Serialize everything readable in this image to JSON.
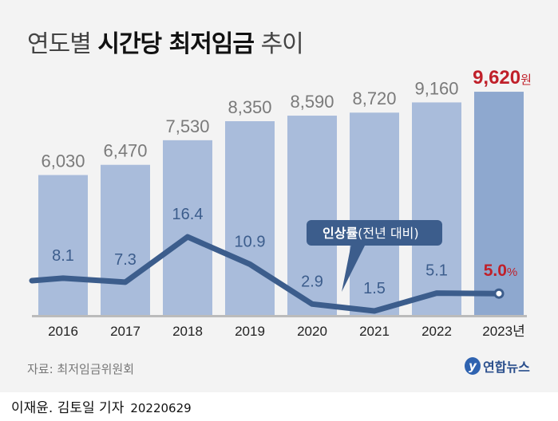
{
  "title": {
    "light1": "연도별",
    "bold": "시간당 최저임금",
    "light2": "추이"
  },
  "chart_data": {
    "type": "bar",
    "title": "연도별 시간당 최저임금 추이",
    "categories": [
      "2016",
      "2017",
      "2018",
      "2019",
      "2020",
      "2021",
      "2022",
      "2023년"
    ],
    "series": [
      {
        "name": "시간당 최저임금(원)",
        "type": "bar",
        "values": [
          6030,
          6470,
          7530,
          8350,
          8590,
          8720,
          9160,
          9620
        ],
        "labels": [
          "6,030",
          "6,470",
          "7,530",
          "8,350",
          "8,590",
          "8,720",
          "9,160",
          "9,620"
        ],
        "last_unit": "원"
      },
      {
        "name": "인상률(전년 대비)",
        "type": "line",
        "values": [
          8.1,
          7.3,
          16.4,
          10.9,
          2.9,
          1.5,
          5.1,
          5.0
        ],
        "labels": [
          "8.1",
          "7.3",
          "16.4",
          "10.9",
          "2.9",
          "1.5",
          "5.1",
          "5.0"
        ],
        "last_unit": "%"
      }
    ],
    "callout": {
      "bold": "인상률",
      "light": "(전년 대비)"
    },
    "colors": {
      "bar": "#a9bcdb",
      "bar_highlight": "#8ea8cf",
      "line": "#3c5d8c",
      "highlight_text": "#c0202a",
      "bar_label": "#7a7a7a"
    }
  },
  "source": "자료: 최저임금위원회",
  "logo": {
    "mark": "y",
    "text": "연합뉴스"
  },
  "credit": {
    "authors": "이재윤. 김토일 기자",
    "date": "20220629"
  }
}
